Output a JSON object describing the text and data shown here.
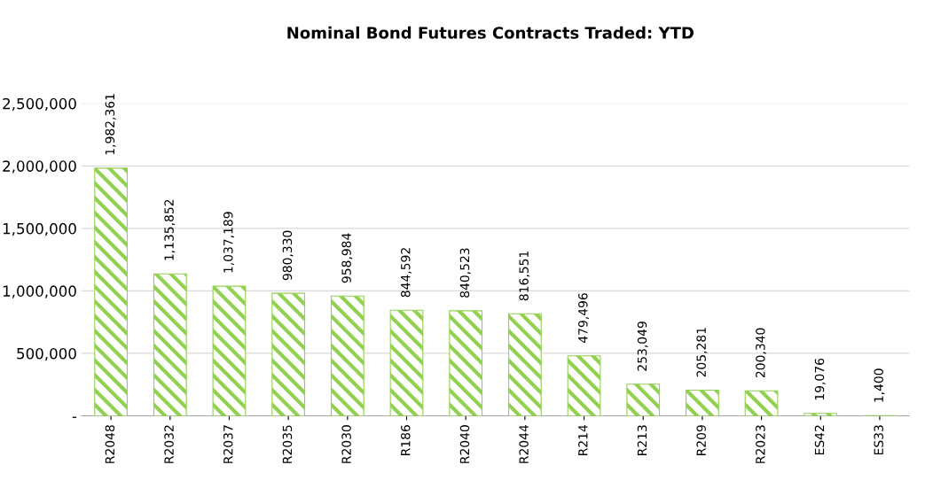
{
  "chart_data": {
    "type": "bar",
    "title": "Nominal Bond Futures Contracts Traded: YTD",
    "categories": [
      "R2048",
      "R2032",
      "R2037",
      "R2035",
      "R2030",
      "R186",
      "R2040",
      "R2044",
      "R214",
      "R213",
      "R209",
      "R2023",
      "ES42",
      "ES33"
    ],
    "values": [
      1982361,
      1135852,
      1037189,
      980330,
      958984,
      844592,
      840523,
      816551,
      479496,
      253049,
      205281,
      200340,
      19076,
      1400
    ],
    "value_labels": [
      "1,982,361",
      "1,135,852",
      "1,037,189",
      "980,330",
      "958,984",
      "844,592",
      "840,523",
      "816,551",
      "479,496",
      "253,049",
      "205,281",
      "200,340",
      "19,076",
      "1,400"
    ],
    "color": "#92d050",
    "ylim": [
      0,
      2500000
    ],
    "yticks": [
      {
        "value": 0,
        "label": "-"
      },
      {
        "value": 500000,
        "label": "500,000"
      },
      {
        "value": 1000000,
        "label": "1,000,000"
      },
      {
        "value": 1500000,
        "label": "1,500,000"
      },
      {
        "value": 2000000,
        "label": "2,000,000"
      },
      {
        "value": 2500000,
        "label": "2,500,000"
      }
    ],
    "grid": "y",
    "legend": false
  }
}
